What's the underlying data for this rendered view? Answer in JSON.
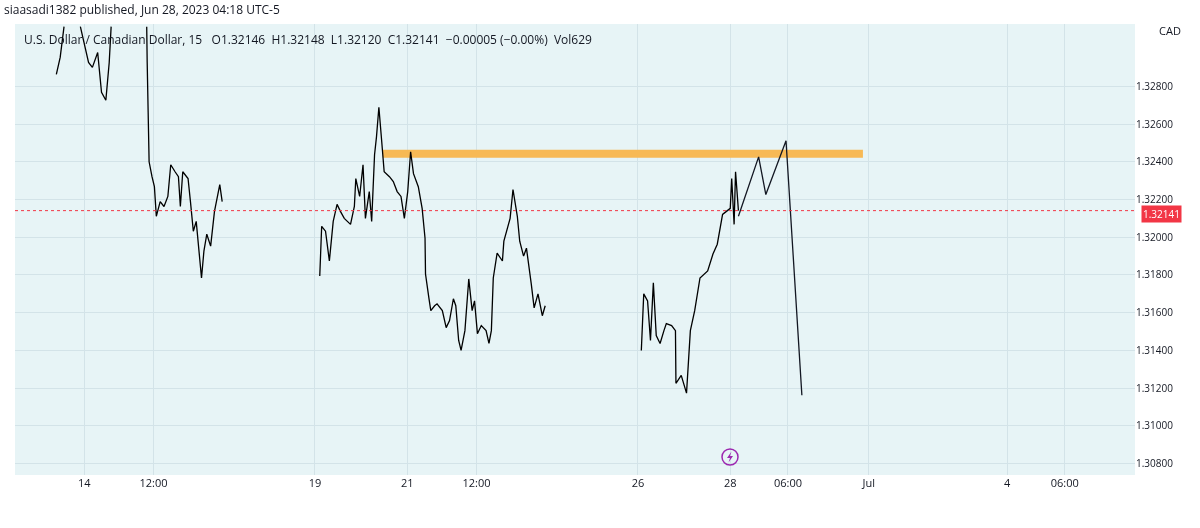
{
  "chart_data": {
    "type": "line",
    "title": "U.S. Dollar / Canadian Dollar, 15",
    "subtitle": "O1.32146  H1.32148  L1.32120  C1.32141  −0.00005 (−0.00%)  Vol629",
    "ylabel": "CAD",
    "annotations": [
      "siaasadi1382 published, Jun 28, 2023 04:18 UTC-5"
    ],
    "xlim": [
      "2023-06-12T12:00",
      "2023-07-06T18:30"
    ],
    "ylim": [
      1.3074,
      1.3313
    ],
    "xticks": [
      {
        "value": "2023-06-14",
        "label": "14"
      },
      {
        "value": "2023-06-15T12:00",
        "label": "12:00"
      },
      {
        "value": "2023-06-19",
        "label": "19"
      },
      {
        "value": "2023-06-21",
        "label": "21"
      },
      {
        "value": "2023-06-22T12:00",
        "label": "12:00"
      },
      {
        "value": "2023-06-26",
        "label": "26"
      },
      {
        "value": "2023-06-28",
        "label": "28"
      },
      {
        "value": "2023-06-29T06:00",
        "label": "06:00"
      },
      {
        "value": "2023-07-01",
        "label": "Jul"
      },
      {
        "value": "2023-07-04",
        "label": "4"
      },
      {
        "value": "2023-07-05T06:00",
        "label": "06:00"
      }
    ],
    "yticks": [
      {
        "value": 1.308,
        "label": "1.30800"
      },
      {
        "value": 1.31,
        "label": "1.31000"
      },
      {
        "value": 1.312,
        "label": "1.31200"
      },
      {
        "value": 1.314,
        "label": "1.31400"
      },
      {
        "value": 1.316,
        "label": "1.31600"
      },
      {
        "value": 1.318,
        "label": "1.31800"
      },
      {
        "value": 1.32,
        "label": "1.32000"
      },
      {
        "value": 1.322,
        "label": "1.32200"
      },
      {
        "value": 1.324,
        "label": "1.32400"
      },
      {
        "value": 1.326,
        "label": "1.32600"
      },
      {
        "value": 1.328,
        "label": "1.32800"
      }
    ],
    "grid": true,
    "legend": false,
    "marker": "none",
    "line_style": "solid",
    "ref_lines": [
      {
        "axis": "y",
        "value": 1.32141,
        "label": "1.32141",
        "color": "#f23645",
        "line_style": "dotted"
      }
    ],
    "series": [
      {
        "color": "#f7b955",
        "x": [
          "2023-06-20T11:15",
          "2023-06-30T21:00"
        ],
        "values": [
          1.32442,
          1.32442
        ]
      },
      {
        "color": "#000000",
        "x": [
          "2023-06-13T09:30",
          "2023-06-13T11:30",
          "2023-06-13T13:30",
          "2023-06-13T17:15",
          "2023-06-13T22:00",
          "2023-06-14T02:15",
          "2023-06-14T04:15",
          "2023-06-14T07:00",
          "2023-06-14T09:00",
          "2023-06-14T11:15",
          "2023-06-14T13:00",
          "2023-06-14T14:00",
          "2023-06-14T22:45",
          "2023-06-15T08:30",
          "2023-06-15T08:45",
          "2023-06-15T09:15",
          "2023-06-15T09:45",
          "2023-06-15T11:15",
          "2023-06-15T12:30",
          "2023-06-15T13:30",
          "2023-06-15T15:30",
          "2023-06-15T17:30",
          "2023-06-15T19:30",
          "2023-06-15T21:00",
          "2023-06-15T23:15",
          "2023-06-16T01:00",
          "2023-06-16T02:00",
          "2023-06-16T03:15",
          "2023-06-16T06:00",
          "2023-06-16T07:15",
          "2023-06-16T08:45",
          "2023-06-16T10:15",
          "2023-06-16T13:00",
          "2023-06-16T14:15",
          "2023-06-16T15:45",
          "2023-06-16T17:45",
          "2023-06-16T19:45",
          "2023-06-16T22:30",
          "2023-06-16T23:45",
          "2023-06-17T12:00",
          "2023-06-19T02:30",
          "2023-06-19T03:30",
          "2023-06-19T05:30",
          "2023-06-19T07:30",
          "2023-06-19T09:30",
          "2023-06-19T11:30",
          "2023-06-19T13:15",
          "2023-06-19T15:15",
          "2023-06-19T18:30",
          "2023-06-19T20:30",
          "2023-06-19T21:15",
          "2023-06-19T23:15",
          "2023-06-20T01:00",
          "2023-06-20T02:15",
          "2023-06-20T04:15",
          "2023-06-20T05:30",
          "2023-06-20T07:00",
          "2023-06-20T08:00",
          "2023-06-20T09:15",
          "2023-06-20T10:45",
          "2023-06-20T12:00",
          "2023-06-20T14:45",
          "2023-06-20T16:45",
          "2023-06-20T18:45",
          "2023-06-20T20:45",
          "2023-06-20T22:30",
          "2023-06-21T00:15",
          "2023-06-21T01:45",
          "2023-06-21T03:15",
          "2023-06-21T05:45",
          "2023-06-21T07:45",
          "2023-06-21T09:15",
          "2023-06-21T09:30",
          "2023-06-21T11:15",
          "2023-06-21T12:15",
          "2023-06-21T14:15",
          "2023-06-21T15:30",
          "2023-06-21T18:15",
          "2023-06-21T20:15",
          "2023-06-21T22:00",
          "2023-06-22T00:00",
          "2023-06-22T01:15",
          "2023-06-22T02:45",
          "2023-06-22T04:00",
          "2023-06-22T06:00",
          "2023-06-22T08:00",
          "2023-06-22T09:45",
          "2023-06-22T11:00",
          "2023-06-22T12:30",
          "2023-06-22T14:30",
          "2023-06-22T17:00",
          "2023-06-22T18:30",
          "2023-06-22T19:45",
          "2023-06-22T20:45",
          "2023-06-22T22:45",
          "2023-06-23T01:30",
          "2023-06-23T02:15",
          "2023-06-23T05:30",
          "2023-06-23T07:00",
          "2023-06-23T09:15",
          "2023-06-23T10:30",
          "2023-06-23T12:30",
          "2023-06-23T14:00",
          "2023-06-23T16:30",
          "2023-06-23T18:00",
          "2023-06-23T20:00",
          "2023-06-23T22:15",
          "2023-06-23T23:45",
          "2023-06-24T12:00",
          "2023-06-26T01:45",
          "2023-06-26T03:00",
          "2023-06-26T05:00",
          "2023-06-26T06:30",
          "2023-06-26T08:00",
          "2023-06-26T09:30",
          "2023-06-26T11:30",
          "2023-06-26T13:30",
          "2023-06-26T14:45",
          "2023-06-26T17:30",
          "2023-06-26T19:30",
          "2023-06-26T19:45",
          "2023-06-26T22:30",
          "2023-06-27T01:15",
          "2023-06-27T03:15",
          "2023-06-27T05:30",
          "2023-06-27T08:15",
          "2023-06-27T12:15",
          "2023-06-27T15:00",
          "2023-06-27T17:15",
          "2023-06-27T20:00",
          "2023-06-27T22:00",
          "2023-06-28T00:00",
          "2023-06-28T00:45",
          "2023-06-28T02:00",
          "2023-06-28T02:45",
          "2023-06-28T04:15"
        ],
        "values": [
          1.32863,
          1.32953,
          1.33116,
          null,
          1.33116,
          1.32926,
          1.329,
          1.32979,
          1.32768,
          1.32726,
          1.32926,
          1.33116,
          null,
          1.33116,
          1.32926,
          1.32663,
          1.324,
          1.32321,
          1.32268,
          1.32111,
          1.32189,
          1.32163,
          1.32216,
          1.32384,
          1.32347,
          1.32321,
          1.32163,
          1.32347,
          1.32311,
          1.32189,
          1.32032,
          1.32084,
          1.31784,
          1.31926,
          1.32016,
          1.31953,
          1.32137,
          1.32279,
          1.32189,
          null,
          1.31795,
          1.32058,
          1.32032,
          1.31874,
          1.32084,
          1.32174,
          1.32137,
          1.321,
          1.32068,
          1.32163,
          1.32311,
          1.32216,
          1.32384,
          1.321,
          1.32242,
          1.32084,
          1.32437,
          1.32532,
          1.32689,
          1.32505,
          1.32347,
          1.32321,
          1.32295,
          1.32242,
          1.32216,
          1.321,
          1.32242,
          1.32453,
          1.32337,
          1.32268,
          1.32153,
          1.31995,
          1.31805,
          1.31679,
          1.31611,
          1.31637,
          1.31647,
          1.31611,
          1.31521,
          1.31558,
          1.31674,
          1.31637,
          1.31453,
          1.314,
          1.31505,
          1.31779,
          1.31611,
          1.31663,
          1.31489,
          1.31532,
          1.31505,
          1.31437,
          1.31505,
          1.31784,
          1.31916,
          1.31874,
          1.31979,
          1.321,
          1.32253,
          1.32111,
          1.31979,
          1.319,
          1.31942,
          1.31753,
          1.31626,
          1.317,
          1.31584,
          1.31637,
          null,
          1.314,
          1.317,
          1.31663,
          1.31453,
          1.31758,
          1.31479,
          1.31437,
          1.31505,
          1.31542,
          1.31532,
          1.31505,
          1.31226,
          1.31268,
          1.31174,
          1.31505,
          1.31611,
          1.31784,
          1.31821,
          1.31911,
          1.31963,
          1.32121,
          1.32137,
          1.32153,
          1.32311,
          1.32068,
          1.32347,
          1.32141
        ]
      },
      {
        "color": "#131722",
        "x": [
          "2023-06-28T04:15",
          "2023-06-28T14:45",
          "2023-06-28T18:30",
          "2023-06-29T05:00",
          "2023-06-29T13:15"
        ],
        "values": [
          1.32111,
          1.32426,
          1.32226,
          1.32511,
          1.31163
        ]
      }
    ]
  }
}
